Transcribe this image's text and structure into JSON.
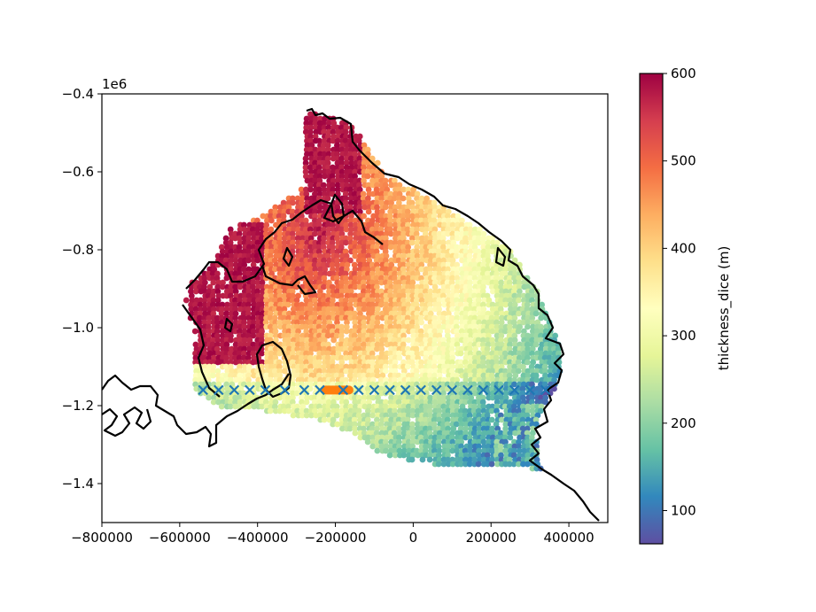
{
  "chart_data": {
    "type": "scatter",
    "title": "",
    "xlabel": "",
    "ylabel": "",
    "y_offset_label": "1e6",
    "xlim": [
      -800000,
      500000
    ],
    "ylim": [
      -1500000,
      -400000
    ],
    "x_ticks": [
      -800000,
      -600000,
      -400000,
      -200000,
      0,
      200000,
      400000
    ],
    "x_tick_labels": [
      "−800000",
      "−600000",
      "−400000",
      "−200000",
      "0",
      "200000",
      "400000"
    ],
    "y_ticks": [
      -400000,
      -600000,
      -800000,
      -1000000,
      -1200000,
      -1400000
    ],
    "y_tick_labels": [
      "−0.4",
      "−0.6",
      "−0.8",
      "−1.0",
      "−1.2",
      "−1.4"
    ],
    "colorbar": {
      "label": "thickness_dice (m)",
      "range": [
        62,
        600
      ],
      "ticks": [
        100,
        200,
        300,
        400,
        500,
        600
      ],
      "tick_labels": [
        "100",
        "200",
        "300",
        "400",
        "500",
        "600"
      ],
      "colormap": "Spectral_r"
    },
    "markers_x": {
      "color": "#1f77b4",
      "y": -1160000,
      "x": [
        -540000,
        -500000,
        -460000,
        -420000,
        -380000,
        -330000,
        -280000,
        -240000,
        -180000,
        -140000,
        -100000,
        -60000,
        -20000,
        20000,
        60000,
        100000,
        140000,
        180000,
        220000,
        260000,
        300000,
        340000
      ]
    },
    "markers_circle": {
      "color": "#ff7f0e",
      "y": -1160000,
      "x_range": [
        -225000,
        -165000
      ]
    },
    "grid": false,
    "legend": "none"
  }
}
